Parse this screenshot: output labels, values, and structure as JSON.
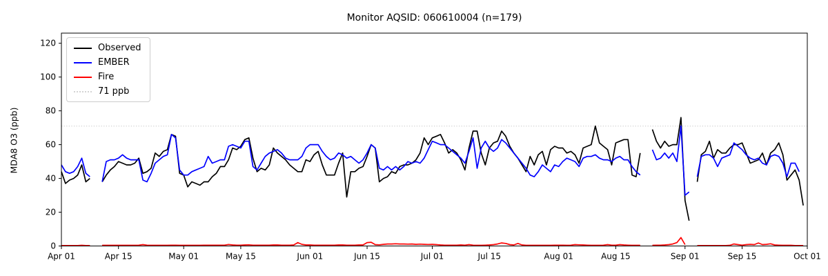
{
  "title": "Monitor AQSID: 060610004 (n=179)",
  "y_axis_label": "MDA8 O3 (ppb)",
  "legend": {
    "entries": [
      {
        "label": "Observed",
        "color": "#000000",
        "style": "solid"
      },
      {
        "label": "EMBER",
        "color": "#0000ff",
        "style": "solid"
      },
      {
        "label": "Fire",
        "color": "#ff0000",
        "style": "solid"
      },
      {
        "label": "71 ppb",
        "color": "#d3d3d3",
        "style": "dotted"
      }
    ]
  },
  "chart_data": {
    "type": "line",
    "title": "Monitor AQSID: 060610004 (n=179)",
    "xlabel": "",
    "ylabel": "MDA8 O3 (ppb)",
    "ylim": [
      0,
      126
    ],
    "yticks": [
      0,
      20,
      40,
      60,
      80,
      100,
      120
    ],
    "grid": false,
    "legend_position": "upper left",
    "x_start_date": "Apr 01",
    "x_end_date": "Oct 01",
    "n_days": 183,
    "x_tick_labels": [
      "Apr 01",
      "Apr 15",
      "May 01",
      "May 15",
      "Jun 01",
      "Jun 15",
      "Jul 01",
      "Jul 15",
      "Aug 01",
      "Aug 15",
      "Sep 01",
      "Sep 15",
      "Oct 01"
    ],
    "x_tick_day_index": [
      0,
      14,
      30,
      44,
      61,
      75,
      91,
      105,
      122,
      136,
      153,
      167,
      183
    ],
    "threshold_line": {
      "label": "71 ppb",
      "value": 71,
      "color": "#d3d3d3",
      "style": "dotted"
    },
    "missing_days": [
      "Apr 09",
      "Apr 10",
      "Aug 22",
      "Aug 23",
      "Sep 03"
    ],
    "series": [
      {
        "name": "Observed",
        "color": "#000000",
        "values": [
          44,
          37,
          39,
          40,
          42,
          48,
          38,
          40,
          null,
          null,
          38,
          42,
          45,
          47,
          50,
          49,
          48,
          48,
          49,
          52,
          43,
          44,
          46,
          55,
          53,
          56,
          57,
          66,
          65,
          43,
          42,
          35,
          38,
          37,
          36,
          38,
          38,
          41,
          43,
          47,
          47,
          51,
          58,
          57,
          59,
          63,
          64,
          52,
          44,
          46,
          45,
          48,
          58,
          55,
          53,
          51,
          48,
          46,
          44,
          44,
          51,
          50,
          54,
          56,
          48,
          42,
          42,
          42,
          49,
          55,
          29,
          44,
          44,
          46,
          47,
          53,
          60,
          58,
          38,
          40,
          41,
          44,
          43,
          47,
          48,
          48,
          49,
          51,
          55,
          64,
          60,
          64,
          65,
          66,
          61,
          55,
          57,
          55,
          51,
          45,
          58,
          68,
          68,
          55,
          48,
          58,
          61,
          62,
          68,
          65,
          59,
          55,
          52,
          48,
          44,
          53,
          48,
          54,
          56,
          48,
          57,
          59,
          58,
          58,
          55,
          56,
          54,
          49,
          58,
          59,
          60,
          71,
          61,
          59,
          57,
          48,
          61,
          62,
          63,
          63,
          42,
          41,
          55,
          null,
          null,
          69,
          62,
          58,
          62,
          59,
          60,
          60,
          76,
          27,
          15,
          null,
          38,
          54,
          56,
          62,
          52,
          57,
          55,
          55,
          58,
          60,
          60,
          61,
          55,
          49,
          50,
          51,
          55,
          48,
          55,
          57,
          61,
          54,
          39,
          42,
          45,
          39,
          24
        ]
      },
      {
        "name": "EMBER",
        "color": "#0000ff",
        "values": [
          48,
          44,
          43,
          44,
          47,
          52,
          43,
          41,
          null,
          null,
          38,
          50,
          51,
          51,
          52,
          54,
          52,
          51,
          51,
          51,
          39,
          38,
          43,
          49,
          51,
          53,
          54,
          66,
          64,
          45,
          42,
          42,
          44,
          45,
          46,
          47,
          53,
          49,
          50,
          51,
          51,
          59,
          60,
          59,
          58,
          62,
          62,
          47,
          45,
          49,
          53,
          55,
          56,
          57,
          55,
          52,
          51,
          51,
          51,
          53,
          58,
          60,
          60,
          60,
          56,
          53,
          51,
          52,
          55,
          54,
          52,
          53,
          51,
          49,
          51,
          55,
          60,
          58,
          46,
          45,
          47,
          45,
          47,
          45,
          47,
          50,
          49,
          50,
          49,
          52,
          57,
          62,
          61,
          60,
          60,
          58,
          56,
          54,
          52,
          49,
          56,
          64,
          46,
          58,
          62,
          58,
          56,
          58,
          63,
          61,
          58,
          55,
          52,
          49,
          46,
          42,
          41,
          44,
          48,
          46,
          44,
          48,
          47,
          50,
          52,
          51,
          50,
          47,
          52,
          53,
          53,
          54,
          52,
          51,
          51,
          50,
          52,
          53,
          51,
          51,
          47,
          44,
          42,
          null,
          null,
          57,
          51,
          52,
          55,
          52,
          55,
          50,
          71,
          30,
          32,
          null,
          41,
          53,
          54,
          54,
          52,
          47,
          52,
          53,
          54,
          61,
          59,
          57,
          54,
          52,
          51,
          52,
          49,
          48,
          53,
          54,
          53,
          49,
          41,
          49,
          49,
          44,
          null
        ]
      },
      {
        "name": "Fire",
        "color": "#ff0000",
        "values": [
          0.3,
          0.3,
          0.3,
          0.3,
          0.3,
          0.4,
          0.3,
          0.3,
          null,
          null,
          0.4,
          0.4,
          0.4,
          0.4,
          0.4,
          0.4,
          0.4,
          0.4,
          0.4,
          0.5,
          0.8,
          0.5,
          0.4,
          0.4,
          0.4,
          0.4,
          0.4,
          0.5,
          0.5,
          0.4,
          0.4,
          0.4,
          0.4,
          0.4,
          0.4,
          0.5,
          0.5,
          0.5,
          0.5,
          0.5,
          0.5,
          0.9,
          0.6,
          0.5,
          0.5,
          0.6,
          0.7,
          0.5,
          0.5,
          0.5,
          0.5,
          0.5,
          0.6,
          0.6,
          0.5,
          0.5,
          0.5,
          0.6,
          2.0,
          1.0,
          0.6,
          0.6,
          0.5,
          0.5,
          0.5,
          0.5,
          0.5,
          0.5,
          0.6,
          0.6,
          0.5,
          0.5,
          0.5,
          0.6,
          0.6,
          2.0,
          2.2,
          0.8,
          0.7,
          1.0,
          1.2,
          1.2,
          1.3,
          1.2,
          1.2,
          1.1,
          1.2,
          1.0,
          1.1,
          1.0,
          0.9,
          1.0,
          0.8,
          0.6,
          0.5,
          0.5,
          0.5,
          0.5,
          0.6,
          0.5,
          0.8,
          0.5,
          0.4,
          0.4,
          0.5,
          0.6,
          0.8,
          1.2,
          1.8,
          1.5,
          0.8,
          0.6,
          1.5,
          0.6,
          0.4,
          0.4,
          0.4,
          0.4,
          0.4,
          0.4,
          0.4,
          0.5,
          0.5,
          0.5,
          0.4,
          0.5,
          0.8,
          0.7,
          0.6,
          0.5,
          0.4,
          0.4,
          0.4,
          0.5,
          0.8,
          0.5,
          0.5,
          0.8,
          0.6,
          0.5,
          0.4,
          0.4,
          0.4,
          null,
          null,
          0.4,
          0.5,
          0.5,
          0.6,
          0.8,
          1.2,
          2.0,
          5.0,
          0.8,
          null,
          null,
          0.3,
          0.3,
          0.3,
          0.3,
          0.3,
          0.3,
          0.3,
          0.3,
          0.4,
          1.2,
          0.8,
          0.5,
          0.8,
          1.0,
          0.8,
          1.8,
          0.8,
          1.0,
          1.3,
          0.6,
          0.5,
          0.4,
          0.4,
          0.4,
          0.3,
          0.3,
          0.3
        ]
      }
    ]
  }
}
